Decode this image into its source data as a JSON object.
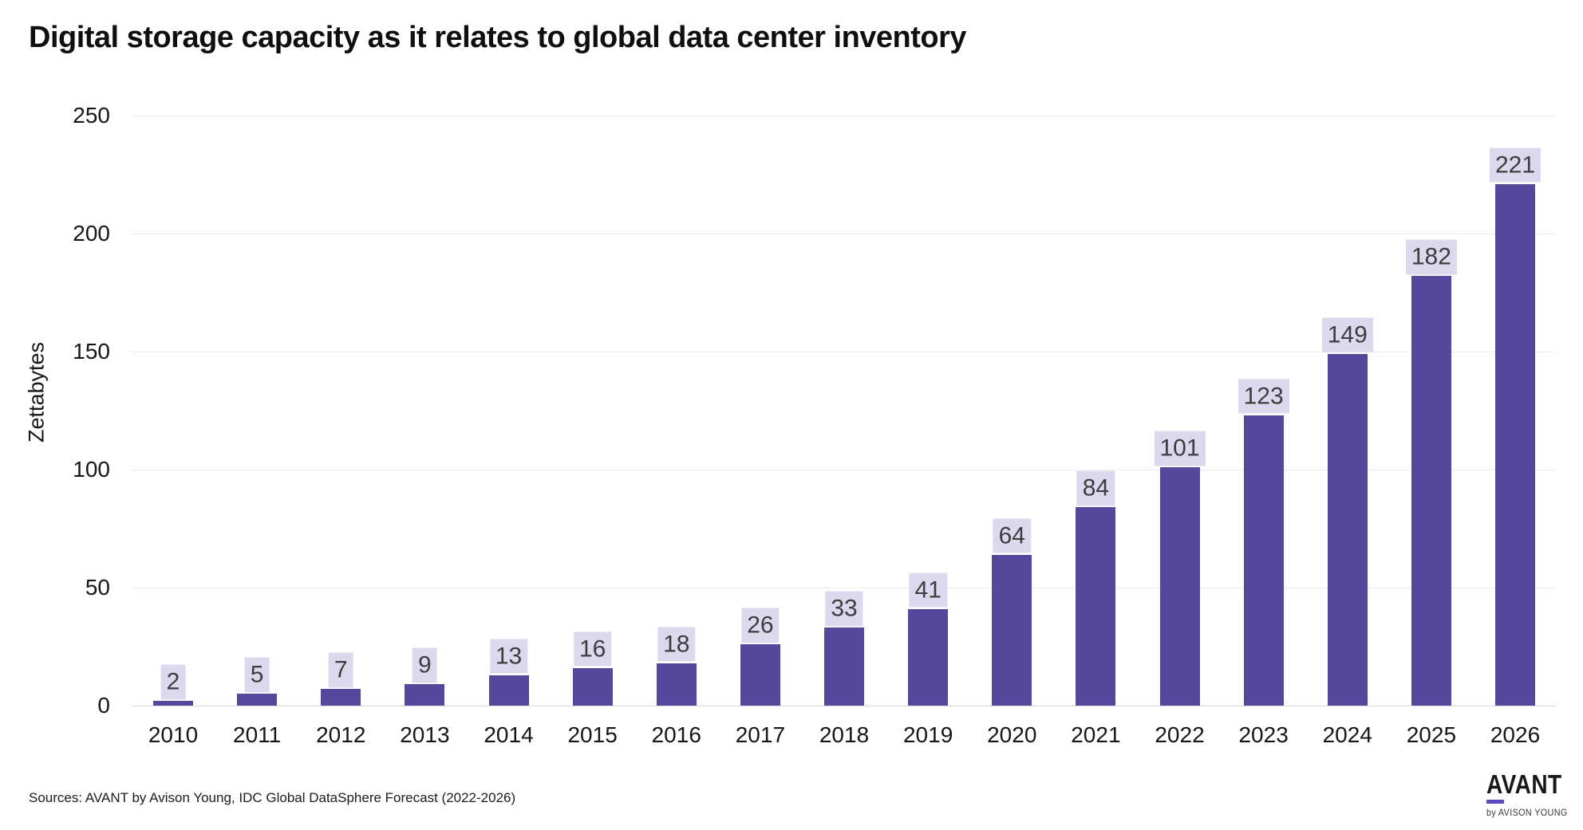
{
  "header": {
    "title": "Digital storage capacity as it relates to global data center inventory"
  },
  "chart_data": {
    "type": "bar",
    "title": "Digital storage capacity as it relates to global data center inventory",
    "categories": [
      "2010",
      "2011",
      "2012",
      "2013",
      "2014",
      "2015",
      "2016",
      "2017",
      "2018",
      "2019",
      "2020",
      "2021",
      "2022",
      "2023",
      "2024",
      "2025",
      "2026"
    ],
    "values": [
      2,
      5,
      7,
      9,
      13,
      16,
      18,
      26,
      33,
      41,
      64,
      84,
      101,
      123,
      149,
      182,
      221
    ],
    "xlabel": "",
    "ylabel": "Zettabytes",
    "ylim": [
      0,
      250
    ],
    "yticks": [
      0,
      50,
      100,
      150,
      200,
      250
    ],
    "grid": "horizontal",
    "legend": "none",
    "value_labels_shown": true,
    "colors": {
      "bar": "#55489c",
      "value_label_bg": "#dcd8ee",
      "value_label_text": "#3d3d3d",
      "gridline": "#ebebeb",
      "axis_baseline": "#dcdcdc",
      "tick_text": "#161616"
    }
  },
  "footer": {
    "sources": "Sources: AVANT by Avison Young, IDC Global DataSphere Forecast (2022-2026)",
    "logo": {
      "wordmark": "AVANT",
      "byline": "by AVISON YOUNG",
      "underline_color": "#5b4abe"
    }
  }
}
